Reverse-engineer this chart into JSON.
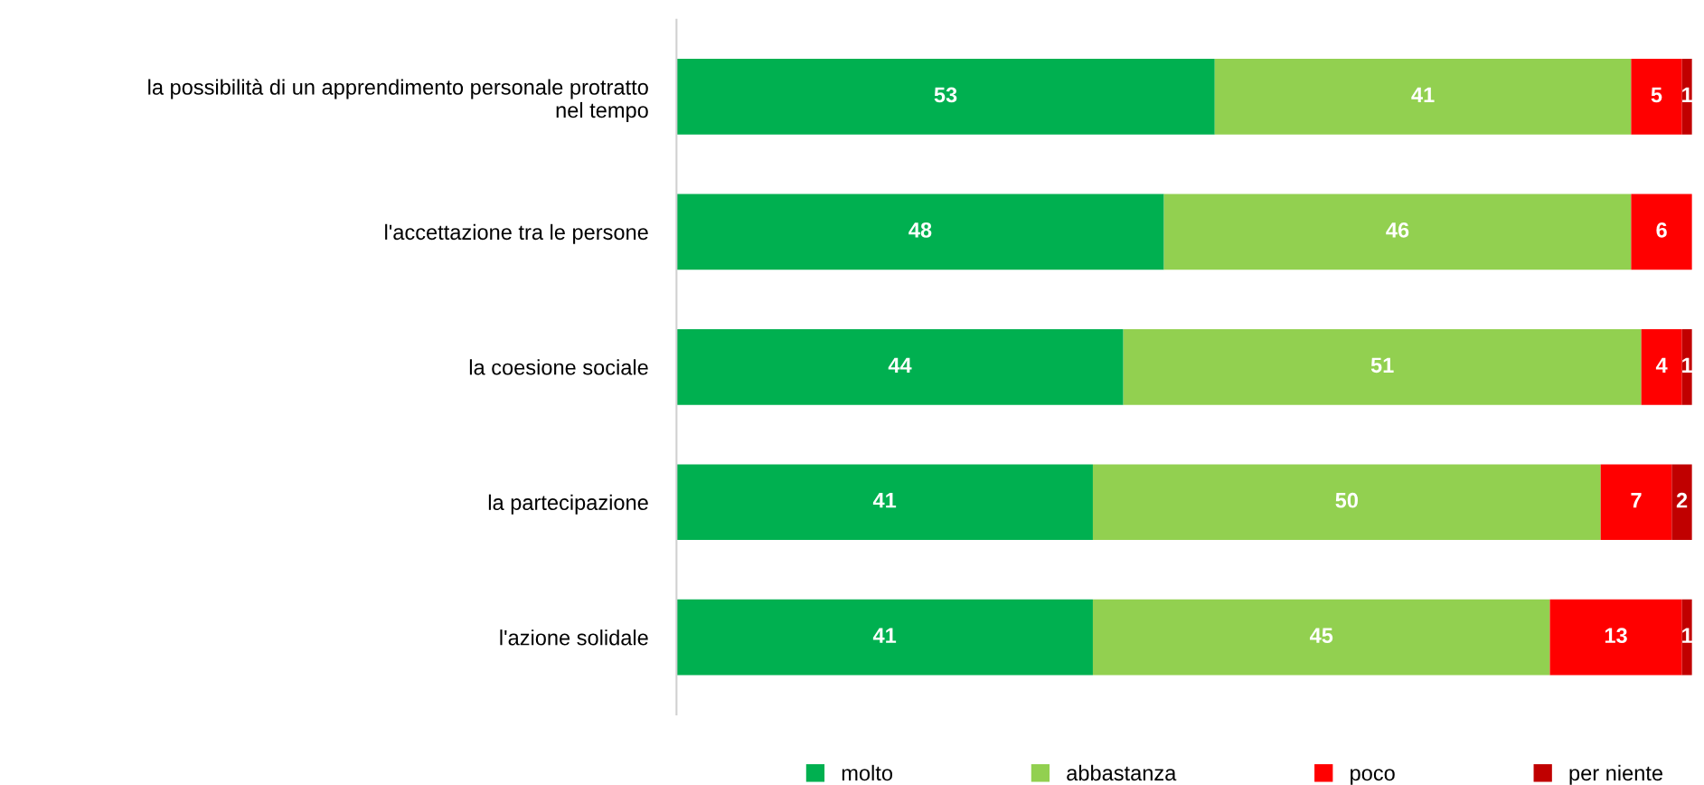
{
  "chart_data": {
    "type": "bar",
    "orientation": "horizontal",
    "stacked": true,
    "categories": [
      "la possibilità di un apprendimento personale protratto\nnel tempo",
      "l'accettazione tra le persone",
      "la coesione sociale",
      "la partecipazione",
      "l'azione solidale"
    ],
    "series": [
      {
        "name": "molto",
        "color": "#00b050",
        "values": [
          53,
          48,
          44,
          41,
          41
        ],
        "value_labels": [
          "53",
          "48",
          "44",
          "41",
          "41"
        ]
      },
      {
        "name": "abbastanza",
        "color": "#92d050",
        "values": [
          41,
          46,
          51,
          50,
          45
        ],
        "value_labels": [
          "41",
          "46",
          "51",
          "50",
          "45"
        ]
      },
      {
        "name": "poco",
        "color": "#ff0000",
        "values": [
          5,
          6,
          4,
          7,
          13
        ],
        "value_labels": [
          "5",
          "6",
          "4",
          "7",
          "13"
        ]
      },
      {
        "name": "per niente",
        "color": "#c00000",
        "values": [
          1,
          0,
          1,
          2,
          1
        ],
        "value_labels": [
          "1",
          null,
          "1",
          "2",
          "1"
        ]
      }
    ],
    "xlim": [
      0,
      100
    ],
    "tick_labels": "y",
    "grid": false,
    "legend": "bottom"
  }
}
